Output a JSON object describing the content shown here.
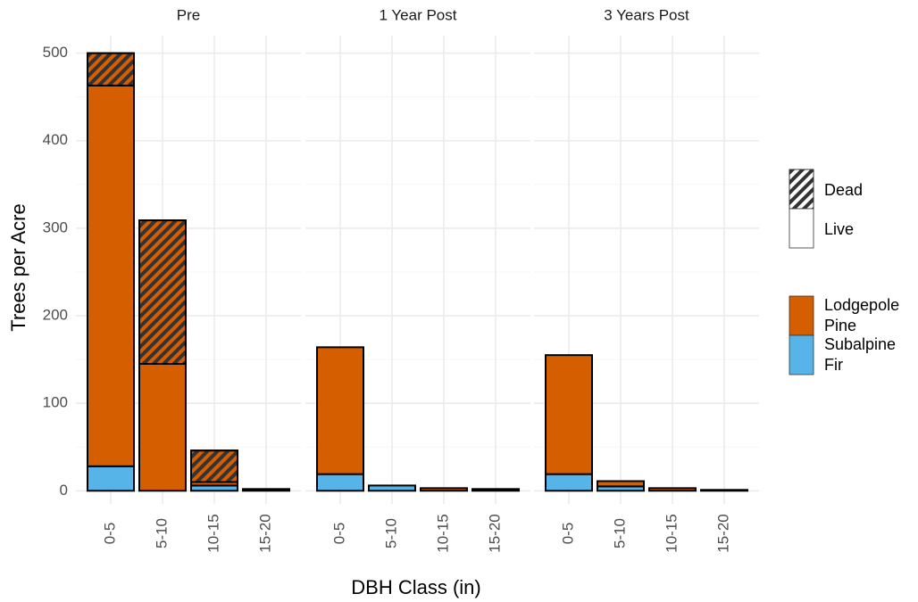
{
  "chart_data": {
    "type": "stacked-bar-facets",
    "y_label": "Trees per Acre",
    "x_label": "DBH Class (in)",
    "categories": [
      "0-5",
      "5-10",
      "10-15",
      "15-20"
    ],
    "ylim": [
      -15,
      520
    ],
    "yticks": [
      0,
      100,
      200,
      300,
      400,
      500
    ],
    "minor_yticks": [
      50,
      150,
      250,
      350,
      450
    ],
    "grid": true,
    "status_legend": [
      {
        "name": "Dead",
        "hatch": true
      },
      {
        "name": "Live",
        "hatch": false
      }
    ],
    "species_legend": [
      {
        "name": "Lodgepole Pine",
        "color": "#d55e00"
      },
      {
        "name": "Subalpine Fir",
        "color": "#56b4e9"
      }
    ],
    "panels": [
      {
        "title": "Pre",
        "series": [
          {
            "species": "Subalpine Fir",
            "status": "Live",
            "values": [
              28,
              0,
              6,
              0
            ]
          },
          {
            "species": "Lodgepole Pine",
            "status": "Live",
            "values": [
              435,
              145,
              4,
              2
            ]
          },
          {
            "species": "Lodgepole Pine",
            "status": "Dead",
            "values": [
              37,
              164,
              36,
              0
            ]
          }
        ]
      },
      {
        "title": "1 Year Post",
        "series": [
          {
            "species": "Subalpine Fir",
            "status": "Live",
            "values": [
              19,
              6,
              0,
              0
            ]
          },
          {
            "species": "Lodgepole Pine",
            "status": "Live",
            "values": [
              145,
              0,
              3,
              2
            ]
          },
          {
            "species": "Lodgepole Pine",
            "status": "Dead",
            "values": [
              0,
              0,
              0,
              0
            ]
          }
        ]
      },
      {
        "title": "3 Years Post",
        "series": [
          {
            "species": "Subalpine Fir",
            "status": "Live",
            "values": [
              19,
              5,
              0,
              0
            ]
          },
          {
            "species": "Lodgepole Pine",
            "status": "Live",
            "values": [
              136,
              6,
              3,
              1
            ]
          },
          {
            "species": "Lodgepole Pine",
            "status": "Dead",
            "values": [
              0,
              0,
              0,
              0
            ]
          }
        ]
      }
    ]
  }
}
